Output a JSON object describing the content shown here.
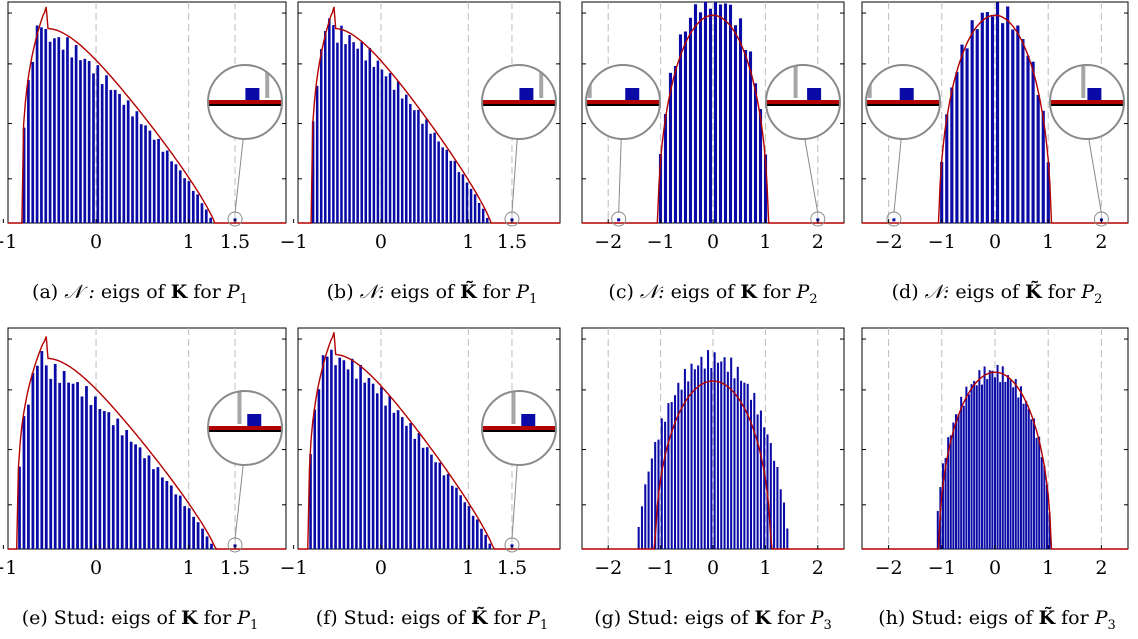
{
  "chart_data": [
    {
      "id": "a",
      "type": "bar",
      "caption_prefix": "(a) ",
      "caption_family": "𝒩 :",
      "caption_matrix": "K",
      "caption_tail": "P",
      "caption_sub": "1",
      "xlim": [
        -0.95,
        2.05
      ],
      "ylim": [
        0,
        1.0
      ],
      "xticks": [
        -1,
        0,
        1,
        1.5
      ],
      "xtick_labels": [
        "−1",
        "0",
        "1",
        "1.5"
      ],
      "vlines": [
        0,
        1,
        1.5
      ],
      "support": [
        -0.8,
        1.26
      ],
      "peak_at": -0.57,
      "peak": 0.96,
      "shape": "mp",
      "nbars": 44,
      "curve": "mp",
      "curve_peak": 1.0,
      "spike": {
        "x": 1.5,
        "h": 0.012
      },
      "zooms": [
        {
          "side": "right",
          "bar_dx": 0.2,
          "gray_dx": 0.6
        }
      ]
    },
    {
      "id": "b",
      "type": "bar",
      "caption_prefix": "(b) ",
      "caption_family": "𝒩:",
      "caption_matrix": "K̃",
      "caption_tail": "P",
      "caption_sub": "1",
      "xlim": [
        -0.95,
        2.05
      ],
      "ylim": [
        0,
        1.0
      ],
      "xticks": [
        -1,
        0,
        1,
        1.5
      ],
      "xtick_labels": [
        "−1",
        "0",
        "1",
        "1.5"
      ],
      "vlines": [
        0,
        1,
        1.5
      ],
      "support": [
        -0.8,
        1.24
      ],
      "peak_at": -0.57,
      "peak": 0.98,
      "shape": "mp",
      "nbars": 44,
      "curve": "mp",
      "curve_peak": 1.0,
      "spike": {
        "x": 1.5,
        "h": 0.012
      },
      "zooms": [
        {
          "side": "right",
          "bar_dx": 0.2,
          "gray_dx": 0.6
        }
      ]
    },
    {
      "id": "c",
      "type": "bar",
      "caption_prefix": "(c) ",
      "caption_family": "𝒩:",
      "caption_matrix": "K",
      "caption_tail": "P",
      "caption_sub": "2",
      "xlim": [
        -2.5,
        2.5
      ],
      "ylim": [
        0,
        1.0
      ],
      "xticks": [
        -2,
        -1,
        0,
        1,
        2
      ],
      "xtick_labels": [
        "−2",
        "−1",
        "0",
        "1",
        "2"
      ],
      "vlines": [
        -2,
        -1,
        0,
        1,
        2
      ],
      "support": [
        -1.05,
        1.05
      ],
      "peak_at": 0,
      "peak": 1.02,
      "shape": "sc",
      "nbars": 22,
      "curve": "sc",
      "curve_peak": 0.94,
      "spike_list": [
        {
          "x": -1.8,
          "h": 0.012
        },
        {
          "x": 2.0,
          "h": 0.012
        }
      ],
      "zooms": [
        {
          "side": "left",
          "bar_dx": 0.25,
          "gray_dx": -0.9
        },
        {
          "side": "right",
          "bar_dx": 0.3,
          "gray_dx": -0.2
        }
      ]
    },
    {
      "id": "d",
      "type": "bar",
      "caption_prefix": "(d) ",
      "caption_family": "𝒩:",
      "caption_matrix": "K̃",
      "caption_tail": "P",
      "caption_sub": "2",
      "xlim": [
        -2.5,
        2.5
      ],
      "ylim": [
        0,
        1.0
      ],
      "xticks": [
        -2,
        -1,
        0,
        1,
        2
      ],
      "xtick_labels": [
        "−2",
        "−1",
        "0",
        "1",
        "2"
      ],
      "vlines": [
        -2,
        -1,
        0,
        1,
        2
      ],
      "support": [
        -1.05,
        1.05
      ],
      "peak_at": 0,
      "peak": 0.96,
      "shape": "sc",
      "nbars": 22,
      "curve": "sc",
      "curve_peak": 0.94,
      "spike_list": [
        {
          "x": -1.9,
          "h": 0.012
        },
        {
          "x": 2.0,
          "h": 0.012
        }
      ],
      "zooms": [
        {
          "side": "left",
          "bar_dx": 0.1,
          "gray_dx": -0.9
        },
        {
          "side": "right",
          "bar_dx": 0.2,
          "gray_dx": -0.1
        }
      ]
    },
    {
      "id": "e",
      "type": "bar",
      "caption_prefix": "(e) Stud: eigs of ",
      "caption_matrix": "K",
      "caption_tail": "P",
      "caption_sub": "1",
      "xlim": [
        -0.95,
        2.05
      ],
      "ylim": [
        0,
        1.0
      ],
      "xticks": [
        -1,
        0,
        1,
        1.5
      ],
      "xtick_labels": [
        "−1",
        "0",
        "1",
        "1.5"
      ],
      "vlines": [
        0,
        1,
        1.5
      ],
      "support": [
        -0.85,
        1.27
      ],
      "peak_at": -0.57,
      "peak": 0.92,
      "shape": "mp",
      "nbars": 44,
      "curve": "mp",
      "curve_peak": 0.98,
      "spike": {
        "x": 1.5,
        "h": 0.012
      },
      "zooms": [
        {
          "side": "right",
          "bar_dx": 0.25,
          "gray_dx": -0.15
        }
      ]
    },
    {
      "id": "f",
      "type": "bar",
      "caption_prefix": "(f) Stud: eigs of ",
      "caption_matrix": "K̃",
      "caption_tail": "P",
      "caption_sub": "1",
      "xlim": [
        -0.95,
        2.05
      ],
      "ylim": [
        0,
        1.0
      ],
      "xticks": [
        -1,
        0,
        1,
        1.5
      ],
      "xtick_labels": [
        "−1",
        "0",
        "1",
        "1.5"
      ],
      "vlines": [
        0,
        1,
        1.5
      ],
      "support": [
        -0.83,
        1.27
      ],
      "peak_at": -0.57,
      "peak": 0.98,
      "shape": "mp",
      "nbars": 44,
      "curve": "mp",
      "curve_peak": 1.0,
      "spike": {
        "x": 1.5,
        "h": 0.012
      },
      "zooms": [
        {
          "side": "right",
          "bar_dx": 0.25,
          "gray_dx": -0.15
        }
      ]
    },
    {
      "id": "g",
      "type": "bar",
      "caption_prefix": "(g) Stud: eigs of ",
      "caption_matrix": "K",
      "caption_tail": "P",
      "caption_sub": "3",
      "xlim": [
        -2.5,
        2.5
      ],
      "ylim": [
        0,
        1.0
      ],
      "xticks": [
        -2,
        -1,
        0,
        1,
        2
      ],
      "xtick_labels": [
        "−2",
        "−1",
        "0",
        "1",
        "2"
      ],
      "vlines": [
        -2,
        -1,
        0,
        1,
        2
      ],
      "support": [
        -1.45,
        1.45
      ],
      "peak_at": 0,
      "peak": 0.86,
      "shape": "sc",
      "nbars": 46,
      "curve": "sc",
      "curve_peak": 0.76,
      "curve_support": [
        -1.1,
        1.1
      ],
      "zooms": []
    },
    {
      "id": "h",
      "type": "bar",
      "caption_prefix": "(h) Stud: eigs of ",
      "caption_matrix": "K̃",
      "caption_tail": "P",
      "caption_sub": "3",
      "xlim": [
        -2.5,
        2.5
      ],
      "ylim": [
        0,
        1.0
      ],
      "xticks": [
        -2,
        -1,
        0,
        1,
        2
      ],
      "xtick_labels": [
        "−2",
        "−1",
        "0",
        "1",
        "2"
      ],
      "vlines": [
        -2,
        -1,
        0,
        1,
        2
      ],
      "support": [
        -1.1,
        1.05
      ],
      "peak_at": 0,
      "peak": 0.8,
      "shape": "sc",
      "nbars": 44,
      "curve": "sc",
      "curve_peak": 0.8,
      "curve_support": [
        -1.05,
        1.05
      ],
      "zooms": []
    }
  ],
  "captions": [
    "(a) 𝒩 : eigs of K for P1",
    "(b) 𝒩: eigs of K̃ for P1",
    "(c) 𝒩: eigs of K for P2",
    "(d) 𝒩: eigs of K̃ for P2",
    "(e) Stud: eigs of K for P1",
    "(f) Stud: eigs of K̃ for P1",
    "(g) Stud: eigs of K for P3",
    "(h) Stud: eigs of K̃ for P3"
  ],
  "colors": {
    "bar": "#0a0aa6",
    "curve": "#b30000",
    "grid": "#bdbdbd",
    "zoom": "#8a8a8a",
    "zoom_gray": "#a6a6a6"
  }
}
